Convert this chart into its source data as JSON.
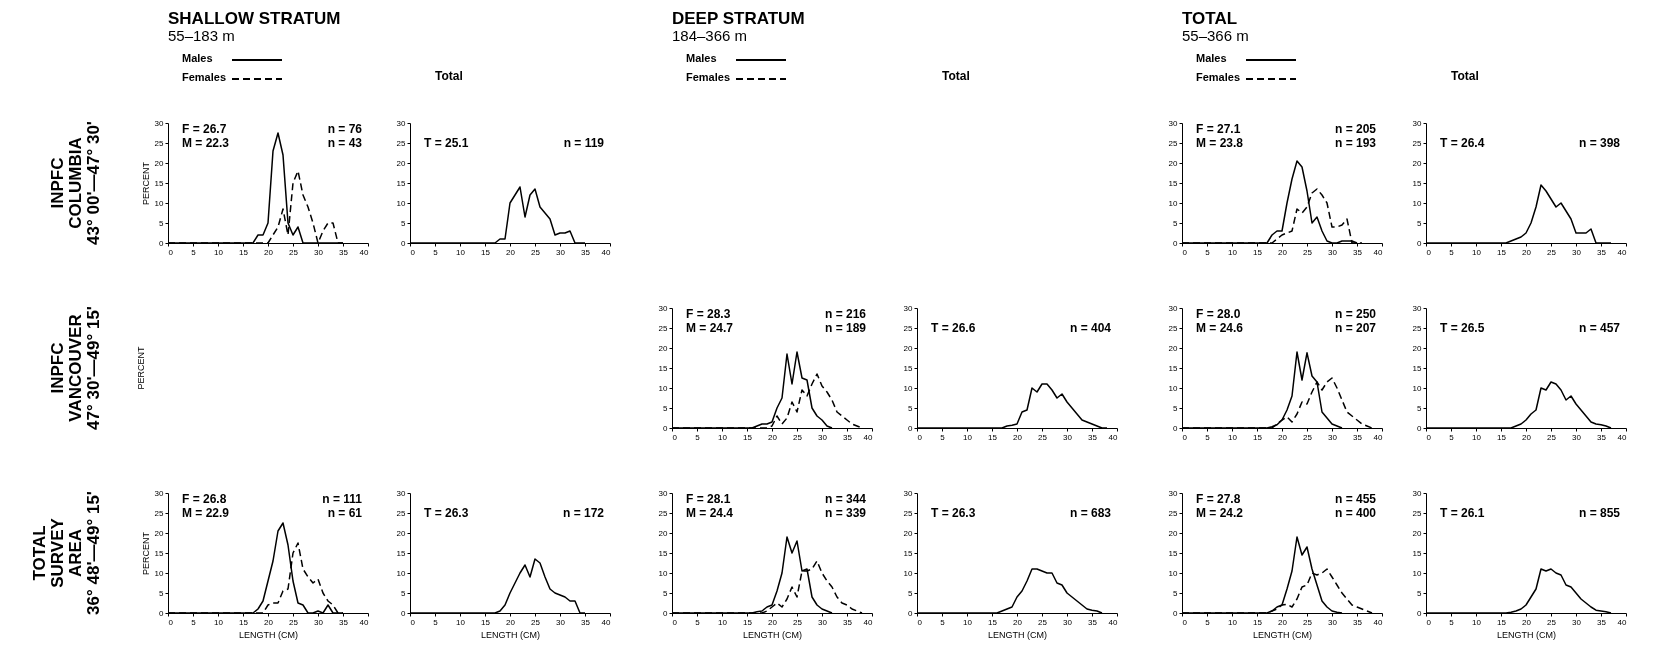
{
  "chart_data": [
    {
      "type": "other",
      "annotations": [
        "INPFC",
        "COLUMBIA",
        "43° 00'—47° 30'"
      ]
    },
    {
      "type": "line",
      "title": "SHALLOW STRATUM",
      "subtitle": "55–183 m",
      "ylabel": "PERCENT",
      "legend": "top left",
      "xlim": [
        0,
        40
      ],
      "xticks": [
        0,
        5,
        10,
        15,
        20,
        25,
        30,
        35,
        40
      ],
      "ylim": [
        0,
        30
      ],
      "yticks": [
        0,
        5,
        10,
        15,
        20,
        25,
        30
      ],
      "annotations": [
        "F = 26.7",
        "M = 22.3",
        "n = 76",
        "n = 43"
      ],
      "series": [
        {
          "name": "Males",
          "color": "#000000",
          "line_style": "solid",
          "x": [
            0,
            17,
            18,
            19,
            20,
            21,
            22,
            23,
            24,
            25,
            26,
            27,
            35
          ],
          "values": [
            0,
            0,
            2,
            2,
            5,
            23,
            27.5,
            22,
            5,
            2,
            4,
            0,
            0
          ]
        },
        {
          "name": "Females",
          "color": "#000000",
          "line_style": "dashed",
          "x": [
            0,
            20,
            21,
            22,
            23,
            24,
            25,
            26,
            27,
            28,
            29,
            30,
            31,
            32,
            33,
            34,
            35
          ],
          "values": [
            0,
            0,
            2,
            4,
            8.5,
            2,
            15,
            18,
            12,
            9,
            5,
            0,
            3,
            5,
            5,
            0,
            0
          ]
        }
      ]
    },
    {
      "type": "line",
      "title": "Total",
      "xlim": [
        0,
        40
      ],
      "xticks": [
        0,
        5,
        10,
        15,
        20,
        25,
        30,
        35,
        40
      ],
      "ylim": [
        0,
        30
      ],
      "yticks": [
        0,
        5,
        10,
        15,
        20,
        25,
        30
      ],
      "annotations": [
        "T = 25.1",
        "n = 119"
      ],
      "series": [
        {
          "color": "#000000",
          "line_style": "solid",
          "x": [
            0,
            17,
            18,
            19,
            20,
            21,
            22,
            23,
            24,
            25,
            26,
            27,
            28,
            29,
            30,
            31,
            32,
            33,
            35
          ],
          "values": [
            0,
            0,
            1,
            1,
            10,
            12,
            14,
            6.5,
            12,
            13.5,
            9,
            7.5,
            6,
            2,
            2.5,
            2.5,
            3,
            0,
            0
          ]
        }
      ]
    },
    {
      "type": "line",
      "title": "TOTAL",
      "subtitle": "55–366 m",
      "legend": "top left",
      "xlim": [
        0,
        40
      ],
      "xticks": [
        0,
        5,
        10,
        15,
        20,
        25,
        30,
        35,
        40
      ],
      "ylim": [
        0,
        30
      ],
      "yticks": [
        0,
        5,
        10,
        15,
        20,
        25,
        30
      ],
      "annotations": [
        "F = 27.1",
        "M = 23.8",
        "n = 205",
        "n = 193"
      ],
      "series": [
        {
          "name": "Males",
          "color": "#000000",
          "line_style": "solid",
          "x": [
            0,
            17,
            18,
            19,
            20,
            21,
            22,
            23,
            24,
            25,
            26,
            27,
            28,
            29,
            30,
            31,
            32,
            33,
            34,
            35
          ],
          "values": [
            0,
            0,
            2,
            3,
            3,
            10,
            16,
            20.5,
            19,
            13,
            5,
            6.5,
            3,
            0.5,
            0,
            0,
            0.5,
            0.5,
            0.5,
            0
          ]
        },
        {
          "name": "Females",
          "color": "#000000",
          "line_style": "dashed",
          "x": [
            0,
            18,
            19,
            20,
            21,
            22,
            23,
            24,
            25,
            26,
            27,
            28,
            29,
            30,
            31,
            32,
            33,
            34,
            36
          ],
          "values": [
            0,
            0,
            1,
            2,
            2.5,
            3,
            8.5,
            7.5,
            9,
            12.5,
            13.5,
            12,
            10,
            4,
            4,
            4.5,
            6,
            0,
            0
          ]
        }
      ]
    },
    {
      "type": "line",
      "title": "Total",
      "xlim": [
        0,
        40
      ],
      "xticks": [
        0,
        5,
        10,
        15,
        20,
        25,
        30,
        35,
        40
      ],
      "ylim": [
        0,
        30
      ],
      "yticks": [
        0,
        5,
        10,
        15,
        20,
        25,
        30
      ],
      "annotations": [
        "T = 26.4",
        "n = 398"
      ],
      "series": [
        {
          "color": "#000000",
          "line_style": "solid",
          "x": [
            0,
            16,
            17,
            18,
            19,
            20,
            21,
            22,
            23,
            24,
            25,
            26,
            27,
            28,
            29,
            30,
            31,
            32,
            33,
            34,
            37
          ],
          "values": [
            0,
            0,
            0.5,
            1,
            1.5,
            2.5,
            5,
            9,
            14.5,
            13,
            11,
            9,
            10,
            8,
            6,
            2.5,
            2.5,
            2.5,
            3.5,
            0,
            0
          ]
        }
      ]
    },
    {
      "type": "other",
      "annotations": [
        "INPFC",
        "VANCOUVER",
        "47° 30'—49° 15'"
      ]
    },
    {
      "type": "other",
      "ylabel": "PERCENT"
    },
    {
      "type": "line",
      "title": "DEEP STRATUM",
      "subtitle": "184–366 m",
      "legend": "top left",
      "xlim": [
        0,
        40
      ],
      "xticks": [
        0,
        5,
        10,
        15,
        20,
        25,
        30,
        35,
        40
      ],
      "ylim": [
        0,
        30
      ],
      "yticks": [
        0,
        5,
        10,
        15,
        20,
        25,
        30
      ],
      "annotations": [
        "F = 28.3",
        "M = 24.7",
        "n = 216",
        "n = 189"
      ],
      "series": [
        {
          "name": "Males",
          "color": "#000000",
          "line_style": "solid",
          "x": [
            0,
            16,
            17,
            18,
            19,
            20,
            21,
            22,
            23,
            24,
            25,
            26,
            27,
            28,
            29,
            30,
            31,
            32
          ],
          "values": [
            0,
            0,
            0.5,
            1,
            1,
            1.5,
            5,
            7.5,
            18.5,
            11,
            19,
            12.5,
            12,
            5,
            3,
            2,
            0.5,
            0
          ]
        },
        {
          "name": "Females",
          "color": "#000000",
          "line_style": "dashed",
          "x": [
            0,
            19,
            20,
            21,
            22,
            23,
            24,
            25,
            26,
            27,
            28,
            29,
            30,
            31,
            32,
            33,
            34,
            35,
            36,
            37,
            38
          ],
          "values": [
            0,
            0,
            0.5,
            3,
            1,
            2.5,
            6.5,
            4,
            9.5,
            8,
            11,
            13.5,
            10.5,
            9,
            7,
            4,
            3,
            2,
            1,
            0.5,
            0
          ]
        }
      ]
    },
    {
      "type": "line",
      "title": "Total",
      "xlim": [
        0,
        40
      ],
      "xticks": [
        0,
        5,
        10,
        15,
        20,
        25,
        30,
        35,
        40
      ],
      "ylim": [
        0,
        30
      ],
      "yticks": [
        0,
        5,
        10,
        15,
        20,
        25,
        30
      ],
      "annotations": [
        "T = 26.6",
        "n = 404"
      ],
      "series": [
        {
          "color": "#000000",
          "line_style": "solid",
          "x": [
            0,
            17,
            18,
            19,
            20,
            21,
            22,
            23,
            24,
            25,
            26,
            27,
            28,
            29,
            30,
            31,
            32,
            33,
            34,
            35,
            36,
            37,
            38
          ],
          "values": [
            0,
            0,
            0.5,
            0.7,
            1,
            4,
            4.5,
            10,
            9,
            11,
            11,
            9.5,
            7.5,
            8.5,
            6.5,
            5,
            3.5,
            2,
            1.5,
            1,
            0.5,
            0,
            0
          ]
        }
      ]
    },
    {
      "type": "line",
      "xlim": [
        0,
        40
      ],
      "xticks": [
        0,
        5,
        10,
        15,
        20,
        25,
        30,
        35,
        40
      ],
      "ylim": [
        0,
        30
      ],
      "yticks": [
        0,
        5,
        10,
        15,
        20,
        25,
        30
      ],
      "annotations": [
        "F = 28.0",
        "M = 24.6",
        "n = 250",
        "n = 207"
      ],
      "series": [
        {
          "color": "#000000",
          "line_style": "solid",
          "x": [
            0,
            17,
            18,
            19,
            20,
            21,
            22,
            23,
            24,
            25,
            26,
            27,
            28,
            29,
            30,
            31,
            32
          ],
          "values": [
            0,
            0,
            0.3,
            0.8,
            2,
            4.5,
            8,
            19,
            12,
            18.8,
            13,
            11.5,
            4,
            2.5,
            1,
            0.5,
            0
          ]
        },
        {
          "color": "#000000",
          "line_style": "dashed",
          "x": [
            0,
            18,
            19,
            20,
            21,
            22,
            23,
            24,
            25,
            26,
            27,
            28,
            29,
            30,
            31,
            32,
            33,
            34,
            35,
            36,
            37,
            38
          ],
          "values": [
            0,
            0,
            1,
            2,
            2.8,
            1.5,
            3.5,
            6.5,
            6,
            9,
            11.5,
            9.5,
            11.5,
            12.5,
            10,
            7,
            4,
            3,
            2,
            1,
            0.5,
            0
          ]
        }
      ]
    },
    {
      "type": "line",
      "xlim": [
        0,
        40
      ],
      "xticks": [
        0,
        5,
        10,
        15,
        20,
        25,
        30,
        35,
        40
      ],
      "ylim": [
        0,
        30
      ],
      "yticks": [
        0,
        5,
        10,
        15,
        20,
        25,
        30
      ],
      "annotations": [
        "T = 26.5",
        "n = 457"
      ],
      "series": [
        {
          "color": "#000000",
          "line_style": "solid",
          "x": [
            0,
            17,
            18,
            19,
            20,
            21,
            22,
            23,
            24,
            25,
            26,
            27,
            28,
            29,
            30,
            31,
            32,
            33,
            34,
            35,
            36,
            37
          ],
          "values": [
            0,
            0,
            0.5,
            1,
            2,
            3.5,
            4.5,
            10,
            9.5,
            11.5,
            11,
            9.5,
            7,
            8,
            6,
            4.5,
            3,
            1.5,
            1,
            0.8,
            0.5,
            0
          ]
        }
      ]
    },
    {
      "type": "other",
      "annotations": [
        "TOTAL",
        "SURVEY",
        "AREA",
        "36° 48'—49° 15'"
      ]
    },
    {
      "type": "line",
      "xlabel": "LENGTH (CM)",
      "ylabel": "PERCENT",
      "xlim": [
        0,
        40
      ],
      "xticks": [
        0,
        5,
        10,
        15,
        20,
        25,
        30,
        35,
        40
      ],
      "ylim": [
        0,
        30
      ],
      "yticks": [
        0,
        5,
        10,
        15,
        20,
        25,
        30
      ],
      "annotations": [
        "F = 26.8",
        "M = 22.9",
        "n = 111",
        "n = 61"
      ],
      "series": [
        {
          "color": "#000000",
          "line_style": "solid",
          "x": [
            0,
            17,
            18,
            19,
            20,
            21,
            22,
            23,
            24,
            25,
            26,
            27,
            28,
            29,
            30,
            31,
            32,
            33,
            35
          ],
          "values": [
            0,
            0,
            1,
            3,
            8,
            13,
            20.5,
            22.5,
            17,
            8,
            2.5,
            2,
            0,
            0,
            0.5,
            0,
            2,
            0,
            0
          ]
        },
        {
          "color": "#000000",
          "line_style": "dashed",
          "x": [
            0,
            19,
            20,
            21,
            22,
            23,
            24,
            25,
            26,
            27,
            28,
            29,
            30,
            31,
            32,
            33,
            34,
            35
          ],
          "values": [
            0,
            0,
            2,
            2.5,
            2.5,
            5.5,
            6,
            15,
            17.5,
            11,
            9,
            7.5,
            8.5,
            5,
            3,
            2,
            0,
            0
          ]
        }
      ]
    },
    {
      "type": "line",
      "xlabel": "LENGTH (CM)",
      "xlim": [
        0,
        40
      ],
      "xticks": [
        0,
        5,
        10,
        15,
        20,
        25,
        30,
        35,
        40
      ],
      "ylim": [
        0,
        30
      ],
      "yticks": [
        0,
        5,
        10,
        15,
        20,
        25,
        30
      ],
      "annotations": [
        "T = 26.3",
        "n = 172"
      ],
      "series": [
        {
          "color": "#000000",
          "line_style": "solid",
          "x": [
            0,
            17,
            18,
            19,
            20,
            21,
            22,
            23,
            24,
            25,
            26,
            27,
            28,
            29,
            30,
            31,
            32,
            33,
            34,
            35
          ],
          "values": [
            0,
            0,
            0.5,
            2,
            5,
            7.5,
            10,
            12,
            9,
            13.5,
            12.5,
            9,
            6,
            5,
            4.5,
            4,
            3,
            3,
            0,
            0
          ]
        }
      ]
    },
    {
      "type": "line",
      "xlabel": "LENGTH (CM)",
      "xlim": [
        0,
        40
      ],
      "xticks": [
        0,
        5,
        10,
        15,
        20,
        25,
        30,
        35,
        40
      ],
      "ylim": [
        0,
        30
      ],
      "yticks": [
        0,
        5,
        10,
        15,
        20,
        25,
        30
      ],
      "annotations": [
        "F = 28.1",
        "M = 24.4",
        "n = 344",
        "n = 339"
      ],
      "series": [
        {
          "color": "#000000",
          "line_style": "solid",
          "x": [
            0,
            16,
            17,
            18,
            19,
            20,
            21,
            22,
            23,
            24,
            25,
            26,
            27,
            28,
            29,
            30,
            31,
            32
          ],
          "values": [
            0,
            0,
            0.3,
            0.5,
            1.5,
            2,
            5.5,
            10,
            19,
            15,
            18,
            10.5,
            11,
            4,
            2,
            1,
            0.5,
            0
          ]
        },
        {
          "color": "#000000",
          "line_style": "dashed",
          "x": [
            0,
            18,
            19,
            20,
            21,
            22,
            23,
            24,
            25,
            26,
            27,
            28,
            29,
            30,
            31,
            32,
            33,
            34,
            35,
            36,
            37,
            38
          ],
          "values": [
            0,
            0,
            0.5,
            1.5,
            2.5,
            1.5,
            3.5,
            6.5,
            4,
            10.5,
            10.5,
            11,
            13,
            10,
            8,
            6.5,
            4,
            2.5,
            2,
            1,
            0.5,
            0
          ]
        }
      ]
    },
    {
      "type": "line",
      "xlabel": "LENGTH (CM)",
      "xlim": [
        0,
        40
      ],
      "xticks": [
        0,
        5,
        10,
        15,
        20,
        25,
        30,
        35,
        40
      ],
      "ylim": [
        0,
        30
      ],
      "yticks": [
        0,
        5,
        10,
        15,
        20,
        25,
        30
      ],
      "annotations": [
        "T = 26.3",
        "n = 683"
      ],
      "series": [
        {
          "color": "#000000",
          "line_style": "solid",
          "x": [
            0,
            16,
            17,
            18,
            19,
            20,
            21,
            22,
            23,
            24,
            25,
            26,
            27,
            28,
            29,
            30,
            31,
            32,
            33,
            34,
            35,
            36,
            37
          ],
          "values": [
            0,
            0,
            0.5,
            1,
            1.5,
            4,
            5.5,
            8,
            11,
            11,
            10.5,
            10,
            10,
            7.5,
            7,
            5,
            4,
            3,
            2,
            1,
            0.7,
            0.5,
            0
          ]
        }
      ]
    },
    {
      "type": "line",
      "xlabel": "LENGTH (CM)",
      "xlim": [
        0,
        40
      ],
      "xticks": [
        0,
        5,
        10,
        15,
        20,
        25,
        30,
        35,
        40
      ],
      "ylim": [
        0,
        30
      ],
      "yticks": [
        0,
        5,
        10,
        15,
        20,
        25,
        30
      ],
      "annotations": [
        "F = 27.8",
        "M = 24.2",
        "n = 455",
        "n = 400"
      ],
      "series": [
        {
          "color": "#000000",
          "line_style": "solid",
          "x": [
            0,
            17,
            18,
            19,
            20,
            21,
            22,
            23,
            24,
            25,
            26,
            27,
            28,
            29,
            30,
            31,
            32
          ],
          "values": [
            0,
            0,
            0.5,
            1.5,
            2,
            6,
            10.5,
            19,
            14.5,
            16.5,
            11,
            7,
            3,
            1.5,
            0.5,
            0.2,
            0
          ]
        },
        {
          "color": "#000000",
          "line_style": "dashed",
          "x": [
            0,
            17,
            18,
            19,
            20,
            21,
            22,
            23,
            24,
            25,
            26,
            27,
            28,
            29,
            30,
            31,
            32,
            33,
            34,
            35,
            36,
            37,
            38
          ],
          "values": [
            0,
            0,
            0.5,
            1,
            2,
            2.2,
            1.5,
            3.5,
            6.5,
            7,
            10,
            9.5,
            10,
            11,
            9,
            7,
            5,
            3.5,
            2,
            1.5,
            1,
            0.5,
            0
          ]
        }
      ]
    },
    {
      "type": "line",
      "xlabel": "LENGTH (CM)",
      "xlim": [
        0,
        40
      ],
      "xticks": [
        0,
        5,
        10,
        15,
        20,
        25,
        30,
        35,
        40
      ],
      "ylim": [
        0,
        30
      ],
      "yticks": [
        0,
        5,
        10,
        15,
        20,
        25,
        30
      ],
      "annotations": [
        "T = 26.1",
        "n = 855"
      ],
      "series": [
        {
          "color": "#000000",
          "line_style": "solid",
          "x": [
            0,
            16,
            17,
            18,
            19,
            20,
            21,
            22,
            23,
            24,
            25,
            26,
            27,
            28,
            29,
            30,
            31,
            32,
            33,
            34,
            35,
            36,
            37
          ],
          "values": [
            0,
            0,
            0.2,
            0.5,
            1,
            2,
            4,
            6,
            11,
            10.5,
            11,
            10,
            9.5,
            7,
            6.5,
            5,
            3.5,
            2.5,
            1.5,
            0.7,
            0.5,
            0.3,
            0
          ]
        }
      ]
    }
  ]
}
